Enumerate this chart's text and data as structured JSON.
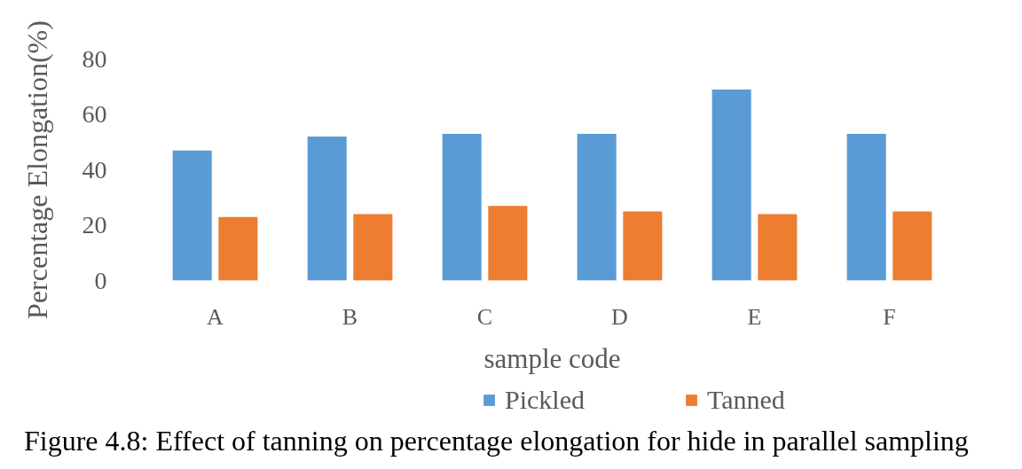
{
  "chart_data": {
    "type": "bar",
    "xlabel": "sample code",
    "ylabel": "Percentage Elongation(%)",
    "categories": [
      "A",
      "B",
      "C",
      "D",
      "E",
      "F"
    ],
    "series": [
      {
        "name": "Pickled",
        "color": "#5b9bd5",
        "values": [
          47,
          52,
          53,
          53,
          69,
          53
        ]
      },
      {
        "name": "Tanned",
        "color": "#ed7d31",
        "values": [
          23,
          24,
          27,
          25,
          24,
          25
        ]
      }
    ],
    "ylim": [
      0,
      80
    ],
    "yticks": [
      0,
      20,
      40,
      60,
      80
    ],
    "legend": "bottom",
    "annotations": [
      "Figure 4.8: Effect of tanning on percentage elongation for hide in parallel sampling"
    ]
  }
}
